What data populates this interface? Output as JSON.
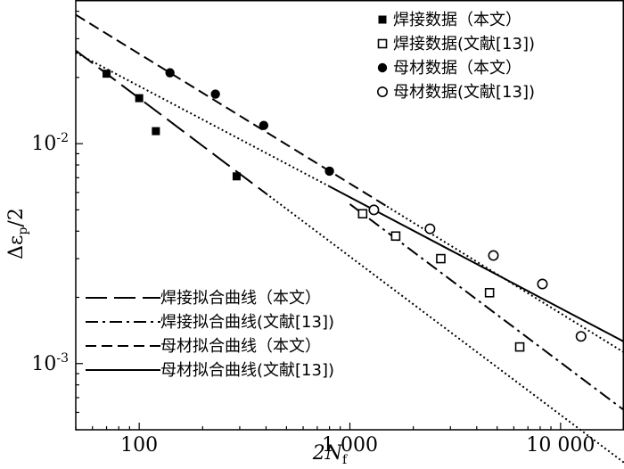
{
  "chart_data": {
    "type": "scatter",
    "log_x": true,
    "log_y": true,
    "xlim": [
      50,
      20000
    ],
    "ylim": [
      0.0005,
      0.045
    ],
    "xlabel": "2N",
    "xlabel_sub": "f",
    "ylabel": "Δε",
    "ylabel_sub": "p",
    "ylabel_suffix": "/2",
    "x_ticks": [
      {
        "value": 100,
        "label": "100"
      },
      {
        "value": 1000,
        "label": "1 000"
      },
      {
        "value": 10000,
        "label": "10 000"
      }
    ],
    "y_ticks": [
      {
        "value": 0.01,
        "base": "10",
        "exp": "-2"
      },
      {
        "value": 0.001,
        "base": "10",
        "exp": "-3"
      }
    ],
    "grid": false,
    "legends": {
      "top-right": "markers",
      "bottom-left": "lines"
    },
    "series": [
      {
        "name": "焊接数据（本文）",
        "marker": "square-filled",
        "points": [
          [
            70,
            0.0208
          ],
          [
            100,
            0.0161
          ],
          [
            120,
            0.0114
          ],
          [
            290,
            0.0071
          ]
        ]
      },
      {
        "name": "焊接数据(文献[13])",
        "marker": "square-open",
        "points": [
          [
            1150,
            0.0048
          ],
          [
            1650,
            0.0038
          ],
          [
            2700,
            0.003
          ],
          [
            4600,
            0.0021
          ],
          [
            6400,
            0.00119
          ]
        ]
      },
      {
        "name": "母材数据（本文）",
        "marker": "circle-filled",
        "points": [
          [
            140,
            0.021
          ],
          [
            230,
            0.0168
          ],
          [
            390,
            0.0121
          ],
          [
            800,
            0.0075
          ]
        ]
      },
      {
        "name": "母材数据(文献[13])",
        "marker": "circle-open",
        "points": [
          [
            1300,
            0.005
          ],
          [
            2400,
            0.0041
          ],
          [
            4800,
            0.0031
          ],
          [
            8200,
            0.0023
          ],
          [
            12500,
            0.00133
          ]
        ]
      }
    ],
    "fit_lines": [
      {
        "name": "焊接拟合曲线（本文）",
        "dash": "long-dash",
        "solid_range": [
          50,
          400
        ],
        "extension_range": [
          400,
          20000
        ],
        "extension_dash": "dotted",
        "a": 0.0208,
        "x0": 70,
        "b": -0.72
      },
      {
        "name": "焊接拟合曲线(文献[13])",
        "dash": "dash-dot",
        "solid_range": [
          1000,
          20000
        ],
        "a": 0.0048,
        "x0": 1150,
        "b": -0.72
      },
      {
        "name": "母材拟合曲线（本文）",
        "dash": "short-dash",
        "solid_range": [
          50,
          1500
        ],
        "extension_range": [
          1500,
          20000
        ],
        "extension_dash": "dotted",
        "a": 0.021,
        "x0": 140,
        "b": -0.59
      },
      {
        "name": "母材拟合曲线(文献[13])",
        "dash": "solid",
        "solid_range": [
          800,
          20000
        ],
        "extension_range": [
          50,
          800
        ],
        "extension_dash": "dotted",
        "a": 0.005,
        "x0": 1300,
        "b": -0.505
      }
    ]
  }
}
